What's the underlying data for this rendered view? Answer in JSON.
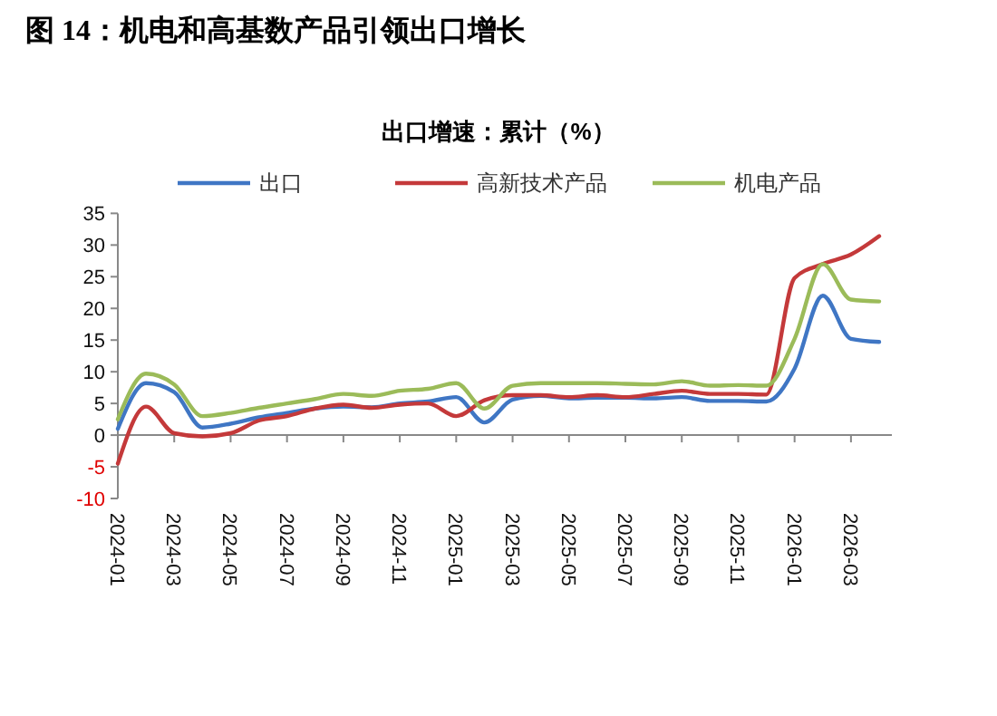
{
  "chart_data": {
    "type": "line",
    "title": "图 14：机电和高基数产品引领出口增长",
    "subtitle": "出口增速：累计（%）",
    "categories": [
      "2024-01",
      null,
      "2024-03",
      null,
      "2024-05",
      null,
      "2024-07",
      null,
      "2024-09",
      null,
      "2024-11",
      null,
      "2025-01",
      null,
      "2025-03",
      null,
      "2025-05",
      null,
      "2025-07",
      null,
      "2025-09",
      null,
      "2025-11",
      null,
      "2026-01",
      null,
      "2026-03",
      null
    ],
    "series": [
      {
        "name": "出口",
        "color": "#3f76c4",
        "values": [
          1,
          8.2,
          6.8,
          1.2,
          1.8,
          2.8,
          3.5,
          4.2,
          4.5,
          4.4,
          5.0,
          5.3,
          6.0,
          2.0,
          5.6,
          6.2,
          5.8,
          5.9,
          5.9,
          5.8,
          6.0,
          5.4,
          5.4,
          5.3,
          10.5,
          22,
          15.2,
          14.7
        ]
      },
      {
        "name": "高新技术产品",
        "color": "#c4393a",
        "values": [
          -4.5,
          4.5,
          0.3,
          -0.2,
          0.3,
          2.3,
          3.0,
          4.2,
          4.8,
          4.3,
          4.8,
          5.0,
          3.0,
          5.5,
          6.3,
          6.3,
          6.0,
          6.3,
          6.0,
          6.5,
          7.0,
          6.5,
          6.5,
          6.4,
          24.8,
          27,
          28.5,
          31.4
        ]
      },
      {
        "name": "机电产品",
        "color": "#9bbb59",
        "values": [
          2.5,
          9.7,
          8.0,
          3.0,
          3.5,
          4.3,
          5.0,
          5.7,
          6.5,
          6.2,
          7.0,
          7.3,
          8.2,
          4.2,
          7.8,
          8.2,
          8.2,
          8.2,
          8.1,
          8.0,
          8.5,
          7.8,
          7.9,
          7.8,
          15.2,
          27,
          21.4,
          21.1
        ]
      }
    ],
    "ylim": [
      -10,
      35
    ],
    "yticks": [
      -10,
      -5,
      0,
      5,
      10,
      15,
      20,
      25,
      30,
      35
    ],
    "legend": "top"
  }
}
